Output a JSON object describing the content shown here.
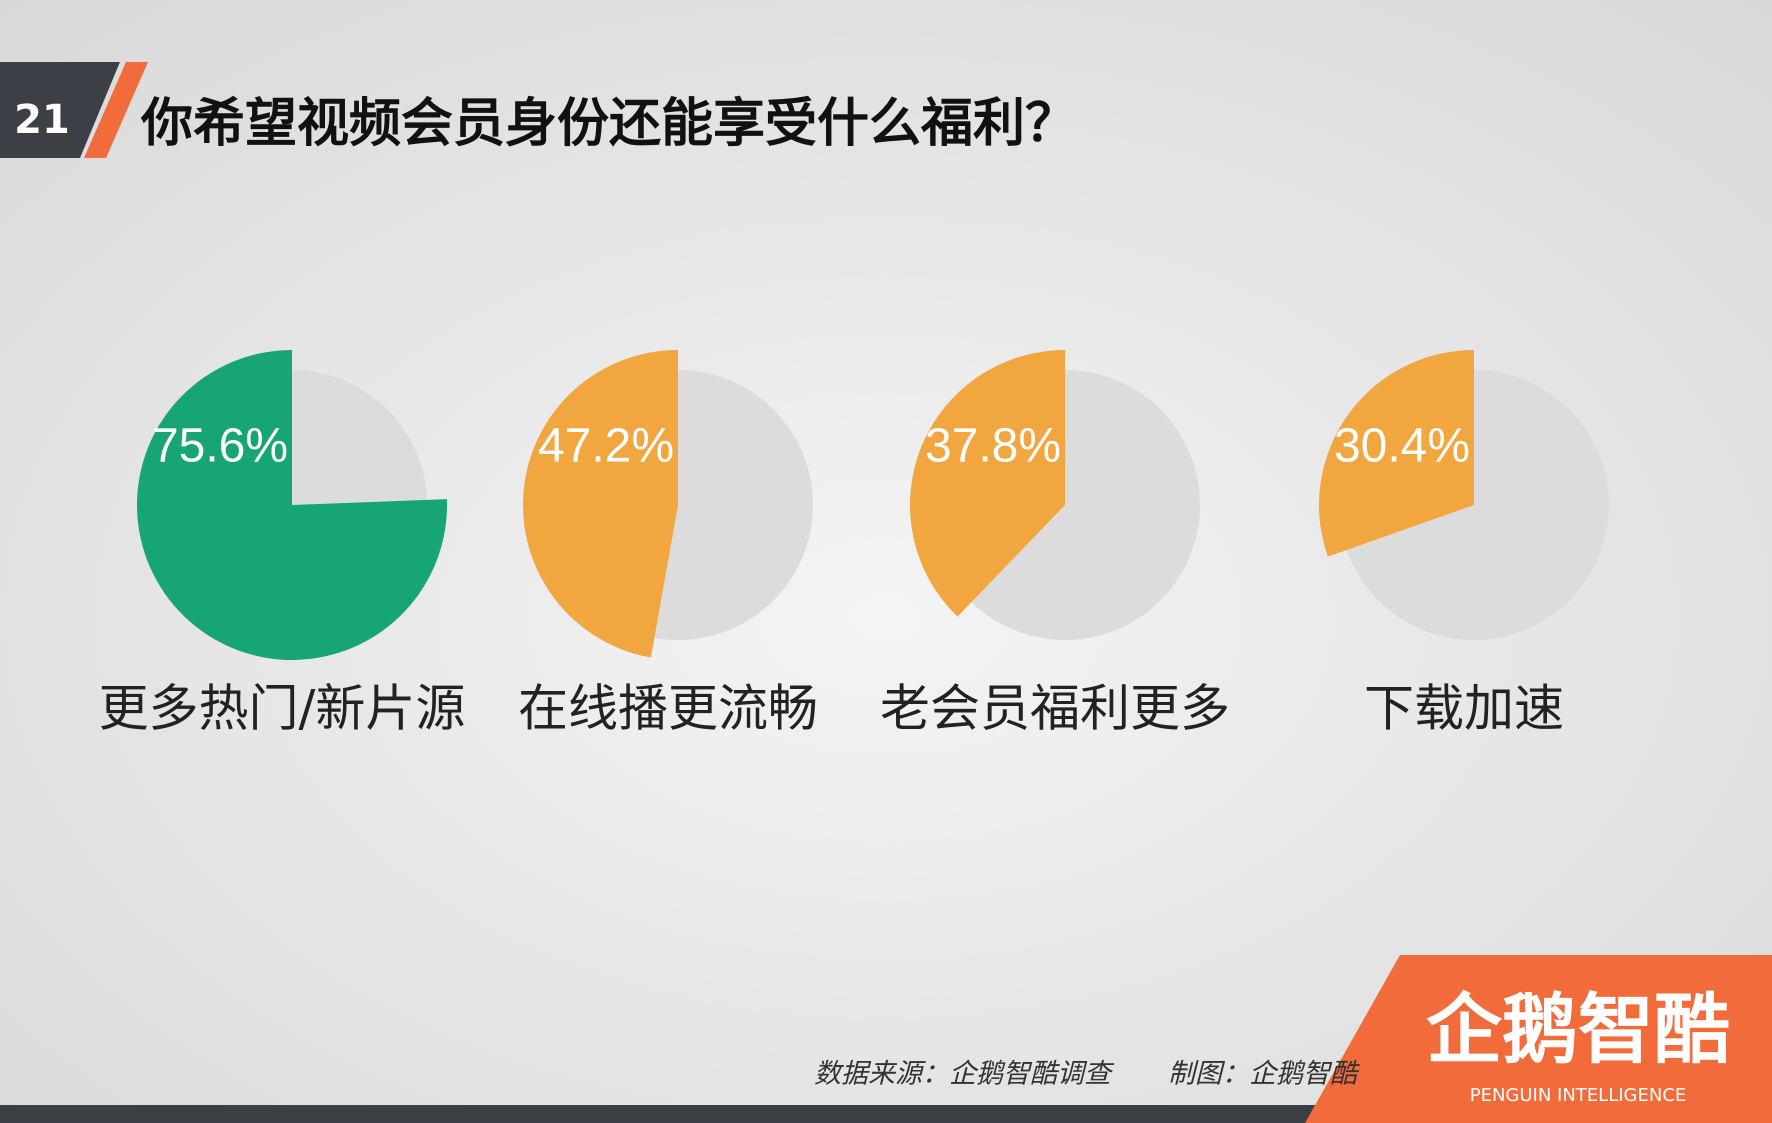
{
  "page_number": "21",
  "title": "你希望视频会员身份还能享受什么福利？",
  "chart_data": [
    {
      "type": "pie",
      "categories": [
        "更多热门/新片源"
      ],
      "values": [
        75.6
      ],
      "value_labels": [
        "75.6%"
      ],
      "color": "#17a673"
    },
    {
      "type": "pie",
      "categories": [
        "在线播更流畅"
      ],
      "values": [
        47.2
      ],
      "value_labels": [
        "47.2%"
      ],
      "color": "#f2a640"
    },
    {
      "type": "pie",
      "categories": [
        "老会员福利更多"
      ],
      "values": [
        37.8
      ],
      "value_labels": [
        "37.8%"
      ],
      "color": "#f2a640"
    },
    {
      "type": "pie",
      "categories": [
        "下载加速"
      ],
      "values": [
        30.4
      ],
      "value_labels": [
        "30.4%"
      ],
      "color": "#f2a640"
    }
  ],
  "source": "数据来源：企鹅智酷调查",
  "credit": "制图：企鹅智酷",
  "logo": {
    "name": "企鹅智酷",
    "tagline": "PENGUIN INTELLIGENCE"
  }
}
